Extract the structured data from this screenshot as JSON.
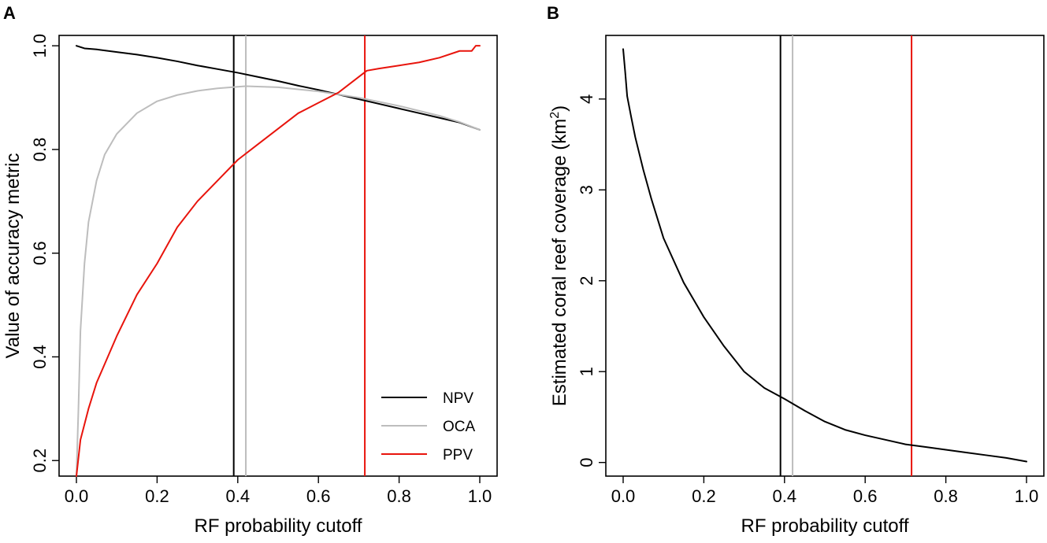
{
  "chart_data": [
    {
      "panel_label": "A",
      "type": "line",
      "xlabel": "RF probability cutoff",
      "ylabel": "Value of accuracy metric",
      "xlim": [
        0.0,
        1.0
      ],
      "ylim": [
        0.17,
        1.02
      ],
      "xticks": [
        0.0,
        0.2,
        0.4,
        0.6,
        0.8,
        1.0
      ],
      "xtick_labels": [
        "0.0",
        "0.2",
        "0.4",
        "0.6",
        "0.8",
        "1.0"
      ],
      "yticks": [
        0.2,
        0.4,
        0.6,
        0.8,
        1.0
      ],
      "ytick_labels": [
        "0.2",
        "0.4",
        "0.6",
        "0.8",
        "1.0"
      ],
      "legend": {
        "position": "bottom-right",
        "entries": [
          {
            "label": "NPV",
            "color": "#000000"
          },
          {
            "label": "OCA",
            "color": "#bdbdbd"
          },
          {
            "label": "PPV",
            "color": "#e8140c"
          }
        ]
      },
      "series": [
        {
          "name": "NPV",
          "color": "#000000",
          "x": [
            0.0,
            0.02,
            0.05,
            0.1,
            0.15,
            0.2,
            0.25,
            0.3,
            0.35,
            0.4,
            0.45,
            0.5,
            0.55,
            0.6,
            0.65,
            0.7,
            0.75,
            0.8,
            0.85,
            0.9,
            0.95,
            1.0
          ],
          "y": [
            1.0,
            0.995,
            0.993,
            0.988,
            0.983,
            0.977,
            0.97,
            0.962,
            0.955,
            0.948,
            0.94,
            0.932,
            0.923,
            0.915,
            0.906,
            0.897,
            0.888,
            0.879,
            0.87,
            0.861,
            0.852,
            0.838
          ]
        },
        {
          "name": "OCA",
          "color": "#bdbdbd",
          "x": [
            0.0,
            0.005,
            0.01,
            0.02,
            0.03,
            0.05,
            0.07,
            0.1,
            0.15,
            0.2,
            0.25,
            0.3,
            0.35,
            0.4,
            0.42,
            0.5,
            0.6,
            0.7,
            0.8,
            0.9,
            0.95,
            1.0
          ],
          "y": [
            0.17,
            0.3,
            0.45,
            0.58,
            0.66,
            0.74,
            0.79,
            0.83,
            0.87,
            0.893,
            0.905,
            0.913,
            0.918,
            0.921,
            0.922,
            0.92,
            0.912,
            0.9,
            0.884,
            0.865,
            0.853,
            0.838
          ]
        },
        {
          "name": "PPV",
          "color": "#e8140c",
          "x": [
            0.0,
            0.01,
            0.03,
            0.05,
            0.1,
            0.15,
            0.2,
            0.25,
            0.3,
            0.35,
            0.4,
            0.45,
            0.5,
            0.55,
            0.6,
            0.65,
            0.7,
            0.72,
            0.75,
            0.8,
            0.85,
            0.9,
            0.95,
            0.98,
            0.99,
            1.0
          ],
          "y": [
            0.17,
            0.24,
            0.3,
            0.35,
            0.44,
            0.52,
            0.58,
            0.65,
            0.7,
            0.74,
            0.78,
            0.81,
            0.84,
            0.87,
            0.89,
            0.91,
            0.94,
            0.952,
            0.956,
            0.962,
            0.968,
            0.977,
            0.99,
            0.99,
            1.0,
            1.0
          ]
        }
      ],
      "vlines": [
        {
          "x": 0.39,
          "color": "#000000"
        },
        {
          "x": 0.42,
          "color": "#bdbdbd"
        },
        {
          "x": 0.715,
          "color": "#e8140c"
        }
      ]
    },
    {
      "panel_label": "B",
      "type": "line",
      "xlabel": "RF probability cutoff",
      "ylabel_parts": [
        "Estimated coral reef coverage (km",
        "2",
        ")"
      ],
      "xlim": [
        0.0,
        1.0
      ],
      "ylim": [
        -0.15,
        4.7
      ],
      "xticks": [
        0.0,
        0.2,
        0.4,
        0.6,
        0.8,
        1.0
      ],
      "xtick_labels": [
        "0.0",
        "0.2",
        "0.4",
        "0.6",
        "0.8",
        "1.0"
      ],
      "yticks": [
        0,
        1,
        2,
        3,
        4
      ],
      "ytick_labels": [
        "0",
        "1",
        "2",
        "3",
        "4"
      ],
      "series": [
        {
          "name": "coverage",
          "color": "#000000",
          "x": [
            0.0,
            0.005,
            0.01,
            0.02,
            0.03,
            0.05,
            0.07,
            0.1,
            0.15,
            0.2,
            0.25,
            0.3,
            0.35,
            0.4,
            0.45,
            0.5,
            0.55,
            0.6,
            0.65,
            0.7,
            0.75,
            0.8,
            0.85,
            0.9,
            0.95,
            1.0
          ],
          "y": [
            4.55,
            4.3,
            4.03,
            3.8,
            3.58,
            3.22,
            2.9,
            2.47,
            1.98,
            1.6,
            1.28,
            1.0,
            0.82,
            0.7,
            0.57,
            0.45,
            0.36,
            0.3,
            0.25,
            0.2,
            0.17,
            0.14,
            0.11,
            0.08,
            0.05,
            0.01
          ]
        }
      ],
      "vlines": [
        {
          "x": 0.39,
          "color": "#000000"
        },
        {
          "x": 0.42,
          "color": "#bdbdbd"
        },
        {
          "x": 0.715,
          "color": "#e8140c"
        }
      ]
    }
  ]
}
